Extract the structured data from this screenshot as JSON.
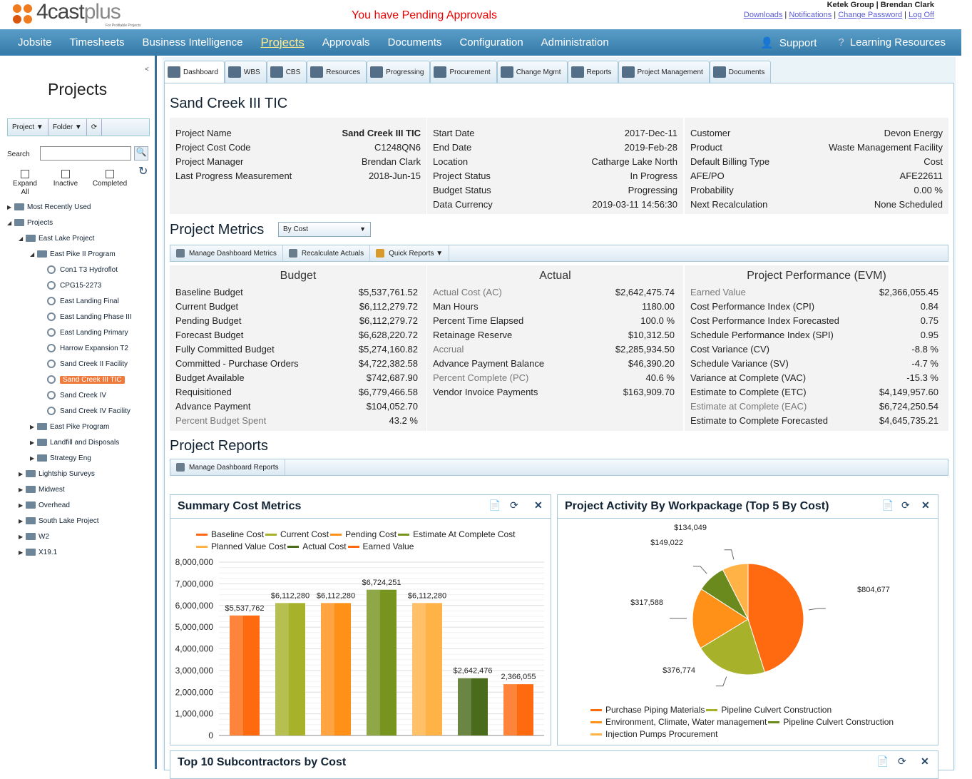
{
  "header": {
    "logo": "4castplus",
    "logo_tagline": "For Profitable Projects",
    "pending": "You have Pending Approvals",
    "user": "Ketek Group | Brendan Clark",
    "links": [
      "Downloads",
      "Notifications",
      "Change Password",
      "Log Off"
    ]
  },
  "nav": {
    "items": [
      "Jobsite",
      "Timesheets",
      "Business Intelligence",
      "Projects",
      "Approvals",
      "Documents",
      "Configuration",
      "Administration"
    ],
    "active": "Projects",
    "right": [
      "Support",
      "Learning Resources"
    ]
  },
  "sidebar": {
    "collapse": "<",
    "title": "Projects",
    "tools": [
      "Project ▼",
      "Folder ▼"
    ],
    "search_label": "Search",
    "search_value": "",
    "checks": [
      "Expand All",
      "Inactive",
      "Completed"
    ],
    "tree": [
      {
        "label": "Most Recently Used",
        "level": 0,
        "type": "folder",
        "toggle": "▶"
      },
      {
        "label": "Projects",
        "level": 0,
        "type": "folder",
        "toggle": "◢"
      },
      {
        "label": "East Lake Project",
        "level": 1,
        "type": "folder",
        "toggle": "◢"
      },
      {
        "label": "East Pike II Program",
        "level": 2,
        "type": "folder",
        "toggle": "◢"
      },
      {
        "label": "Con1 T3 Hydroflot",
        "level": 3,
        "type": "project"
      },
      {
        "label": "CPG15-2273",
        "level": 3,
        "type": "project"
      },
      {
        "label": "East Landing Final",
        "level": 3,
        "type": "project"
      },
      {
        "label": "East Landing Phase III",
        "level": 3,
        "type": "project"
      },
      {
        "label": "East Landing Primary",
        "level": 3,
        "type": "project"
      },
      {
        "label": "Harrow Expansion T2",
        "level": 3,
        "type": "project"
      },
      {
        "label": "Sand Creek II Facility",
        "level": 3,
        "type": "project"
      },
      {
        "label": "Sand Creek III TIC",
        "level": 3,
        "type": "project",
        "selected": true
      },
      {
        "label": "Sand Creek IV",
        "level": 3,
        "type": "project"
      },
      {
        "label": "Sand Creek IV Facility",
        "level": 3,
        "type": "project"
      },
      {
        "label": "East Pike Program",
        "level": 2,
        "type": "folder",
        "toggle": "▶"
      },
      {
        "label": "Landfill and Disposals",
        "level": 2,
        "type": "folder",
        "toggle": "▶"
      },
      {
        "label": "Strategy Eng",
        "level": 2,
        "type": "folder",
        "toggle": "▶"
      },
      {
        "label": "Lightship Surveys",
        "level": 1,
        "type": "folder",
        "toggle": "▶"
      },
      {
        "label": "Midwest",
        "level": 1,
        "type": "folder",
        "toggle": "▶"
      },
      {
        "label": "Overhead",
        "level": 1,
        "type": "folder",
        "toggle": "▶"
      },
      {
        "label": "South Lake Project",
        "level": 1,
        "type": "folder",
        "toggle": "▶"
      },
      {
        "label": "W2",
        "level": 1,
        "type": "folder",
        "toggle": "▶"
      },
      {
        "label": "X19.1",
        "level": 1,
        "type": "folder",
        "toggle": "▶"
      }
    ]
  },
  "tabs": [
    "Dashboard",
    "WBS",
    "CBS",
    "Resources",
    "Progressing",
    "Procurement",
    "Change Mgmt",
    "Reports",
    "Project Management",
    "Documents"
  ],
  "tab_active": "Dashboard",
  "project": {
    "title": "Sand Creek III TIC",
    "info": [
      [
        [
          "Project Name",
          "Sand Creek III TIC"
        ],
        [
          "Project Cost Code",
          "C1248QN6"
        ],
        [
          "Project Manager",
          "Brendan Clark"
        ],
        [
          "Last Progress Measurement",
          "2018-Jun-15"
        ]
      ],
      [
        [
          "Start Date",
          "2017-Dec-11"
        ],
        [
          "End Date",
          "2019-Feb-28"
        ],
        [
          "Location",
          "Catharge Lake North"
        ],
        [
          "Project Status",
          "In Progress"
        ],
        [
          "Budget Status",
          "Progressing"
        ],
        [
          "Data Currency",
          "2019-03-11 14:56:30"
        ]
      ],
      [
        [
          "Customer",
          "Devon Energy"
        ],
        [
          "Product",
          "Waste Management Facility"
        ],
        [
          "Default Billing Type",
          "Cost"
        ],
        [
          "AFE/PO",
          "AFE22611"
        ],
        [
          "Probability",
          "0.00 %"
        ],
        [
          "Next Recalculation",
          "None Scheduled"
        ]
      ]
    ]
  },
  "metrics": {
    "title": "Project Metrics",
    "selector": "By Cost",
    "toolbar": [
      "Manage Dashboard Metrics",
      "Recalculate Actuals",
      "Quick Reports ▼"
    ],
    "columns": [
      {
        "title": "Budget",
        "rows": [
          [
            "Baseline Budget",
            "$5,537,761.52"
          ],
          [
            "Current Budget",
            "$6,112,279.72"
          ],
          [
            "Pending Budget",
            "$6,112,279.72"
          ],
          [
            "Forecast Budget",
            "$6,628,220.72"
          ],
          [
            "Fully Committed Budget",
            "$5,274,160.82"
          ],
          [
            "Committed - Purchase Orders",
            "$4,722,382.58"
          ],
          [
            "Budget Available",
            "$742,687.90"
          ],
          [
            "Requisitioned",
            "$6,779,466.58"
          ],
          [
            "Advance Payment",
            "$104,052.70"
          ],
          [
            "Percent Budget Spent",
            "43.2 %",
            "light"
          ]
        ]
      },
      {
        "title": "Actual",
        "rows": [
          [
            "Actual Cost (AC)",
            "$2,642,475.74",
            "light"
          ],
          [
            "Man Hours",
            "1180.00"
          ],
          [
            "Percent Time Elapsed",
            "100.0 %"
          ],
          [
            "Retainage Reserve",
            "$10,312.50"
          ],
          [
            "Accrual",
            "$2,285,934.50",
            "light"
          ],
          [
            "Advance Payment Balance",
            "$46,390.20"
          ],
          [
            "Percent Complete (PC)",
            "40.6 %",
            "light"
          ],
          [
            "Vendor Invoice Payments",
            "$163,909.70"
          ]
        ]
      },
      {
        "title": "Project Performance (EVM)",
        "rows": [
          [
            "Earned Value",
            "$2,366,055.45",
            "light"
          ],
          [
            "Cost Performance Index (CPI)",
            "0.84"
          ],
          [
            "Cost Performance Index Forecasted",
            "0.75"
          ],
          [
            "Schedule Performance Index (SPI)",
            "0.95"
          ],
          [
            "Cost Variance (CV)",
            "-8.8 %"
          ],
          [
            "Schedule Variance (SV)",
            "-4.7 %"
          ],
          [
            "Variance at Complete (VAC)",
            "-15.3 %"
          ],
          [
            "Estimate to Complete (ETC)",
            "$4,149,957.60"
          ],
          [
            "Estimate at Complete (EAC)",
            "$6,724,250.54",
            "light"
          ],
          [
            "Estimate to Complete Forecasted",
            "$4,645,735.21"
          ]
        ]
      }
    ]
  },
  "reports": {
    "title": "Project Reports",
    "toolbar": [
      "Manage Dashboard Reports"
    ],
    "third_card_title": "Top 10 Subcontractors by Cost"
  },
  "chart_data": [
    {
      "type": "bar",
      "title": "Summary Cost Metrics",
      "ylim": [
        0,
        8000000
      ],
      "yticks": [
        "8,000,000",
        "7,000,000",
        "6,000,000",
        "5,000,000",
        "4,000,000",
        "3,000,000",
        "2,000,000",
        "1,000,000",
        "0"
      ],
      "grid": true,
      "legend": "top",
      "series": [
        {
          "name": "Baseline Cost",
          "value": 5537762,
          "label": "$5,537,762",
          "color": "#ff6a10"
        },
        {
          "name": "Current Cost",
          "value": 6112280,
          "label": "$6,112,280",
          "color": "#a7b22a"
        },
        {
          "name": "Pending Cost",
          "value": 6112280,
          "label": "$6,112,280",
          "color": "#ff9118"
        },
        {
          "name": "Estimate At Complete Cost",
          "value": 6724251,
          "label": "$6,724,251",
          "color": "#77941e"
        },
        {
          "name": "Planned Value Cost",
          "value": 6112280,
          "label": "$6,112,280",
          "color": "#ffb347"
        },
        {
          "name": "Actual Cost",
          "value": 2642476,
          "label": "$2,642,476",
          "color": "#4a6b1c"
        },
        {
          "name": "Earned Value",
          "value": 2366055,
          "label": "2,366,055",
          "color": "#ff6a10"
        }
      ]
    },
    {
      "type": "pie",
      "title": "Project Activity By Workpackage (Top 5 By Cost)",
      "legend": "bottom",
      "slices": [
        {
          "name": "Purchase Piping Materials",
          "value": 804677,
          "label": "$804,677",
          "color": "#ff6a10"
        },
        {
          "name": "Pipeline Culvert Construction",
          "value": 376774,
          "label": "$376,774",
          "color": "#a7b22a"
        },
        {
          "name": "Environment, Climate, Water management",
          "value": 317588,
          "label": "$317,588",
          "color": "#ff9118"
        },
        {
          "name": "Pipeline Culvert Construction",
          "value": 149022,
          "label": "$149,022",
          "color": "#6b8a1e"
        },
        {
          "name": "Injection Pumps Procurement",
          "value": 134049,
          "label": "$134,049",
          "color": "#ffb347"
        }
      ]
    }
  ]
}
